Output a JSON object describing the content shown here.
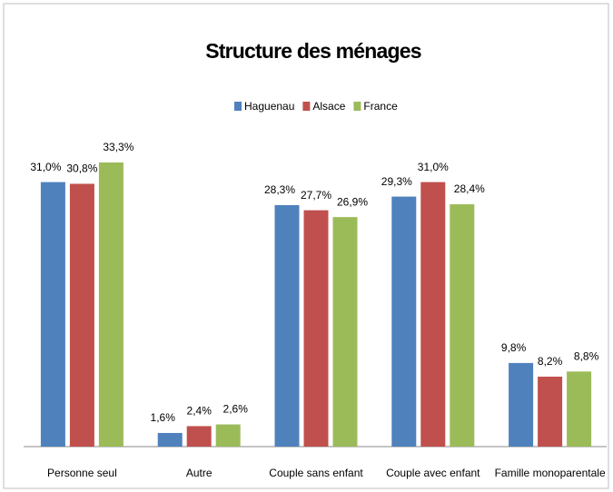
{
  "chart_data": {
    "type": "bar",
    "title": "Structure des ménages",
    "categories": [
      "Personne seul",
      "Autre",
      "Couple sans enfant",
      "Couple avec enfant",
      "Famille monoparentale"
    ],
    "series": [
      {
        "name": "Haguenau",
        "color": "#4f81bd",
        "values": [
          31.0,
          1.6,
          28.3,
          29.3,
          9.8
        ],
        "value_labels": [
          "31,0%",
          "1,6%",
          "28,3%",
          "29,3%",
          "9,8%"
        ]
      },
      {
        "name": "Alsace",
        "color": "#c0504d",
        "values": [
          30.8,
          2.4,
          27.7,
          31.0,
          8.2
        ],
        "value_labels": [
          "30,8%",
          "2,4%",
          "27,7%",
          "31,0%",
          "8,2%"
        ]
      },
      {
        "name": "France",
        "color": "#9bbb59",
        "values": [
          33.3,
          2.6,
          26.9,
          28.4,
          8.8
        ],
        "value_labels": [
          "33,3%",
          "2,6%",
          "26,9%",
          "28,4%",
          "8,8%"
        ]
      }
    ],
    "ylim": [
      0,
      35
    ],
    "legend": "top"
  }
}
